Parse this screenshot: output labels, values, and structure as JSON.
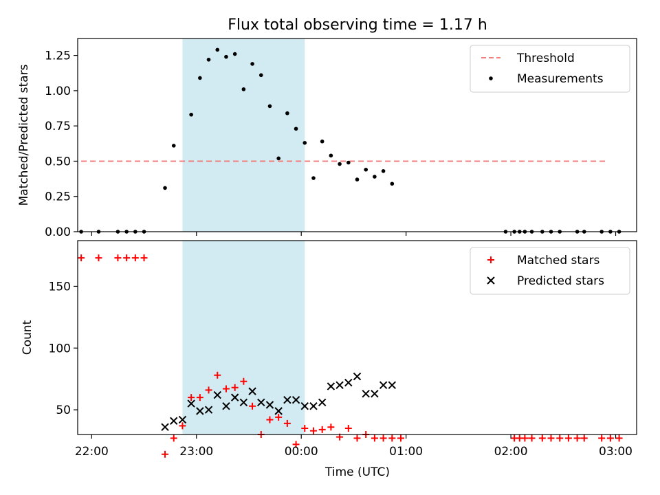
{
  "chart_data": {
    "type": "scatter",
    "title": "Flux total observing time = 1.17 h",
    "xlabel": "Time (UTC)",
    "x_ticks": [
      "22:00",
      "23:00",
      "00:00",
      "01:00",
      "02:00",
      "03:00"
    ],
    "shaded_interval": [
      "22:52",
      "00:02"
    ],
    "colors": {
      "threshold": "#f08080",
      "measurements": "#000000",
      "matched": "#ff0000",
      "predicted": "#000000",
      "shade": "#add8e6"
    },
    "panels": [
      {
        "ylabel": "Matched/Predicted stars",
        "ylim": [
          0,
          1.37
        ],
        "y_ticks": [
          0.0,
          0.25,
          0.5,
          0.75,
          1.0,
          1.25
        ],
        "legend_position": "top-right",
        "series": [
          {
            "name": "Threshold",
            "style": "dashed-line",
            "x": [
              "21:54",
              "02:54"
            ],
            "y": [
              0.5,
              0.5
            ]
          },
          {
            "name": "Measurements",
            "style": "dot",
            "x": [
              "21:54",
              "22:04",
              "22:15",
              "22:20",
              "22:25",
              "22:30",
              "22:42",
              "22:47",
              "22:57",
              "23:02",
              "23:07",
              "23:12",
              "23:17",
              "23:22",
              "23:27",
              "23:32",
              "23:37",
              "23:42",
              "23:47",
              "23:52",
              "23:57",
              "00:02",
              "00:07",
              "00:12",
              "00:17",
              "00:22",
              "00:27",
              "00:32",
              "00:37",
              "00:42",
              "00:47",
              "00:52",
              "01:57",
              "02:02",
              "02:05",
              "02:08",
              "02:12",
              "02:18",
              "02:23",
              "02:28",
              "02:38",
              "02:42",
              "02:52",
              "02:57",
              "03:02"
            ],
            "y": [
              0,
              0,
              0,
              0,
              0,
              0,
              0.31,
              0.61,
              0.83,
              1.09,
              1.22,
              1.29,
              1.24,
              1.26,
              1.01,
              1.19,
              1.11,
              0.89,
              0.52,
              0.84,
              0.73,
              0.63,
              0.38,
              0.64,
              0.54,
              0.48,
              0.49,
              0.37,
              0.44,
              0.39,
              0.43,
              0.34,
              0,
              0,
              0,
              0,
              0,
              0,
              0,
              0,
              0,
              0,
              0,
              0,
              0
            ]
          }
        ]
      },
      {
        "ylabel": "Count",
        "ylim": [
          30,
          187
        ],
        "y_ticks": [
          50,
          100,
          150
        ],
        "legend_position": "top-right",
        "series": [
          {
            "name": "Matched stars",
            "style": "plus",
            "x": [
              "21:54",
              "22:04",
              "22:15",
              "22:20",
              "22:25",
              "22:30",
              "22:42",
              "22:47",
              "22:52",
              "22:57",
              "23:02",
              "23:07",
              "23:12",
              "23:17",
              "23:22",
              "23:27",
              "23:32",
              "23:37",
              "23:42",
              "23:47",
              "23:52",
              "23:57",
              "00:02",
              "00:07",
              "00:12",
              "00:17",
              "00:22",
              "00:27",
              "00:32",
              "00:37",
              "00:42",
              "00:47",
              "00:52",
              "00:57",
              "02:02",
              "02:05",
              "02:08",
              "02:12",
              "02:18",
              "02:23",
              "02:28",
              "02:33",
              "02:38",
              "02:42",
              "02:52",
              "02:57",
              "03:02"
            ],
            "y": [
              173,
              173,
              173,
              173,
              173,
              173,
              14,
              27,
              37,
              60,
              60,
              66,
              78,
              67,
              68,
              73,
              53,
              30,
              42,
              44,
              39,
              22,
              35,
              33,
              34,
              36,
              28,
              35,
              27,
              30,
              27,
              27,
              27,
              27,
              27,
              27,
              27,
              27,
              27,
              27,
              27,
              27,
              27,
              27,
              27,
              27,
              27
            ]
          },
          {
            "name": "Predicted stars",
            "style": "x",
            "x": [
              "22:42",
              "22:47",
              "22:52",
              "22:57",
              "23:02",
              "23:07",
              "23:12",
              "23:17",
              "23:22",
              "23:27",
              "23:32",
              "23:37",
              "23:42",
              "23:47",
              "23:52",
              "23:57",
              "00:02",
              "00:07",
              "00:12",
              "00:17",
              "00:22",
              "00:27",
              "00:32",
              "00:37",
              "00:42",
              "00:47",
              "00:52"
            ],
            "y": [
              36,
              41,
              42,
              55,
              49,
              50,
              62,
              53,
              60,
              56,
              65,
              56,
              54,
              49,
              58,
              58,
              53,
              53,
              56,
              69,
              70,
              72,
              77,
              63,
              63,
              70,
              70
            ]
          }
        ]
      }
    ]
  }
}
